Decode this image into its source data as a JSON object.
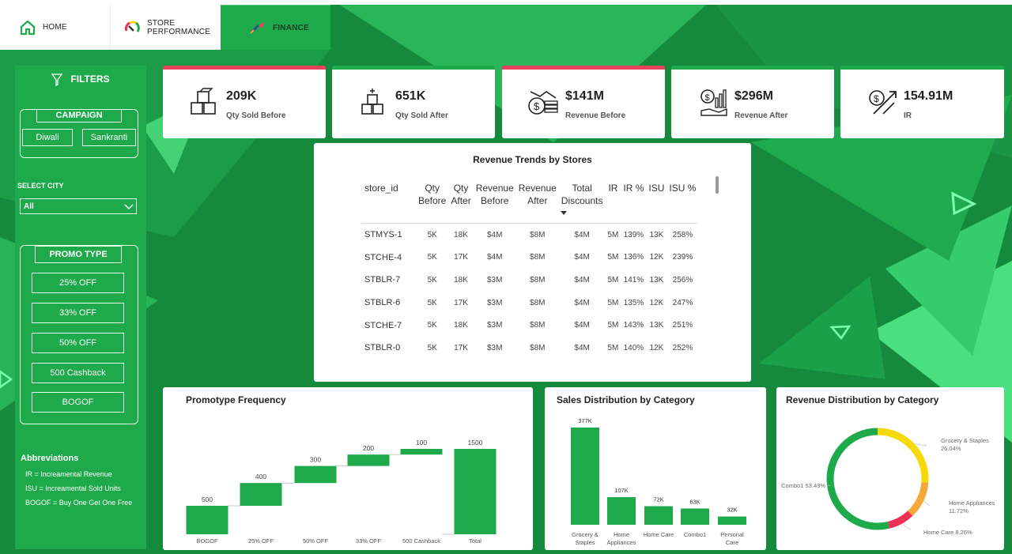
{
  "nav": [
    {
      "label": "HOME",
      "icon": "home-icon"
    },
    {
      "label": "STORE\nPERFORMANCE",
      "icon": "gauge-icon"
    },
    {
      "label": "FINANCE",
      "icon": "rocket-icon"
    }
  ],
  "filters": {
    "title": "FILTERS",
    "campaign": {
      "label": "CAMPAIGN",
      "options": [
        "Diwali",
        "Sankranti"
      ]
    },
    "city": {
      "label": "SELECT CITY",
      "value": "All"
    },
    "promo": {
      "label": "PROMO TYPE",
      "options": [
        "25% OFF",
        "33% OFF",
        "50% OFF",
        "500 Cashback",
        "BOGOF"
      ]
    },
    "abbreviations": {
      "title": "Abbreviations",
      "items": [
        "IR = Increamental Revenue",
        "ISU = Increamental Sold Units",
        "BOGOF = Buy One Get One Free"
      ]
    }
  },
  "kpis": [
    {
      "value": "209K",
      "label": "Qty Sold Before",
      "icon": "boxes-icon",
      "accent": "#e8425b"
    },
    {
      "value": "651K",
      "label": "Qty Sold After",
      "icon": "stacked-boxes-icon",
      "accent": "#1ea94a"
    },
    {
      "value": "$141M",
      "label": "Revenue Before",
      "icon": "money-down-icon",
      "accent": "#e8425b"
    },
    {
      "value": "$296M",
      "label": "Revenue After",
      "icon": "money-growth-icon",
      "accent": "#1ea94a"
    },
    {
      "value": "154.91M",
      "label": "IR",
      "icon": "dollar-arrow-icon",
      "accent": "#1ea94a"
    }
  ],
  "table": {
    "title": "Revenue Trends by Stores",
    "columns": [
      "store_id",
      "Qty\nBefore",
      "Qty\nAfter",
      "Revenue\nBefore",
      "Revenue\nAfter",
      "Total\nDiscounts",
      "IR",
      "IR %",
      "ISU",
      "ISU %"
    ],
    "rows": [
      [
        "STMYS-1",
        "5K",
        "18K",
        "$4M",
        "$8M",
        "$4M",
        "5M",
        "139%",
        "13K",
        "258%"
      ],
      [
        "STCHE-4",
        "5K",
        "17K",
        "$4M",
        "$8M",
        "$4M",
        "5M",
        "136%",
        "12K",
        "239%"
      ],
      [
        "STBLR-7",
        "5K",
        "18K",
        "$3M",
        "$8M",
        "$4M",
        "5M",
        "141%",
        "13K",
        "256%"
      ],
      [
        "STBLR-6",
        "5K",
        "17K",
        "$3M",
        "$8M",
        "$4M",
        "5M",
        "135%",
        "12K",
        "247%"
      ],
      [
        "STCHE-7",
        "5K",
        "18K",
        "$3M",
        "$8M",
        "$4M",
        "5M",
        "143%",
        "13K",
        "251%"
      ],
      [
        "STBLR-0",
        "5K",
        "17K",
        "$3M",
        "$8M",
        "$4M",
        "5M",
        "140%",
        "12K",
        "252%"
      ]
    ]
  },
  "chart_data": [
    {
      "type": "bar",
      "subtype": "waterfall",
      "title": "Promotype Frequency",
      "categories": [
        "BOGOF",
        "25% OFF",
        "50% OFF",
        "33% OFF",
        "500 Cashback",
        "Total"
      ],
      "values": [
        500,
        400,
        300,
        200,
        100,
        1500
      ],
      "labels": [
        "500",
        "400",
        "300",
        "200",
        "100",
        "1500"
      ],
      "ylim": [
        0,
        1500
      ],
      "color": "#1ea94a"
    },
    {
      "type": "bar",
      "title": "Sales Distribution by Category",
      "categories": [
        "Grocery &\nStaples",
        "Home\nAppliances",
        "Home Care",
        "Combo1",
        "Personal\nCare"
      ],
      "values": [
        377,
        107,
        72,
        63,
        32
      ],
      "labels": [
        "377K",
        "107K",
        "72K",
        "63K",
        "32K"
      ],
      "ylim": [
        0,
        377
      ],
      "color": "#1ea94a"
    },
    {
      "type": "pie",
      "subtype": "donut",
      "title": "Revenue Distribution by Category",
      "slices": [
        {
          "name": "Grocery & Staples",
          "value": 26.04,
          "label": "Grocery & Staples\n26.04%",
          "color": "#f5d90a"
        },
        {
          "name": "Home Appliances",
          "value": 11.72,
          "label": "Home Appliances\n11.72%",
          "color": "#f5a83a"
        },
        {
          "name": "Home Care",
          "value": 8.26,
          "label": "Home Care 8.26%",
          "color": "#ee2f56"
        },
        {
          "name": "Combo1",
          "value": 53.43,
          "label": "Combo1 53.43%",
          "color": "#1ea94a"
        }
      ]
    }
  ]
}
